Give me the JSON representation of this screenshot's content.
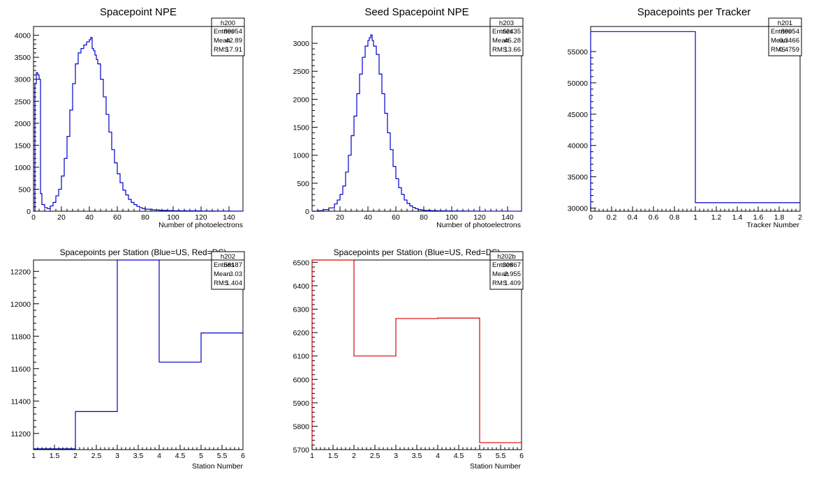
{
  "canvas": {
    "background": "#ffffff"
  },
  "chart_data": [
    {
      "type": "bar",
      "title": "Spacepoint NPE",
      "xlabel": "Number of photoelectrons",
      "ylabel": "",
      "xlim": [
        0,
        150
      ],
      "ylim": [
        0,
        4200
      ],
      "xticks": [
        0,
        20,
        40,
        60,
        80,
        100,
        120,
        140
      ],
      "xticklabels": [
        "0",
        "20",
        "40",
        "60",
        "80",
        "100",
        "120",
        "140"
      ],
      "yticks": [
        0,
        500,
        1000,
        1500,
        2000,
        2500,
        3000,
        3500,
        4000
      ],
      "yticklabels": [
        "0",
        "500",
        "1000",
        "1500",
        "2000",
        "2500",
        "3000",
        "3500",
        "4000"
      ],
      "color": "#0000cc",
      "bin_width": 1,
      "x": [
        0,
        1,
        2,
        3,
        4,
        5,
        6,
        8,
        10,
        12,
        14,
        16,
        18,
        20,
        22,
        24,
        26,
        28,
        30,
        32,
        34,
        36,
        38,
        40,
        41,
        42,
        43,
        44,
        45,
        46,
        48,
        50,
        52,
        54,
        56,
        58,
        60,
        62,
        64,
        66,
        68,
        70,
        72,
        74,
        76,
        78,
        80,
        85,
        90,
        95,
        100,
        110,
        120,
        130,
        140,
        149
      ],
      "values": [
        0,
        2900,
        3150,
        3100,
        3000,
        400,
        150,
        80,
        60,
        120,
        200,
        350,
        500,
        800,
        1200,
        1700,
        2300,
        2900,
        3350,
        3600,
        3700,
        3780,
        3850,
        3900,
        3950,
        3700,
        3650,
        3550,
        3450,
        3350,
        3000,
        2600,
        2200,
        1800,
        1400,
        1100,
        850,
        650,
        480,
        370,
        270,
        200,
        150,
        110,
        80,
        60,
        45,
        30,
        20,
        15,
        10,
        8,
        5,
        3,
        2,
        1
      ],
      "stats": {
        "name": "h200",
        "rows": [
          [
            "Entries",
            "89054"
          ],
          [
            "Mean",
            "42.89"
          ],
          [
            "RMS",
            "17.91"
          ]
        ]
      }
    },
    {
      "type": "bar",
      "title": "Seed Spacepoint NPE",
      "xlabel": "Number of photoelectrons",
      "ylabel": "",
      "xlim": [
        0,
        150
      ],
      "ylim": [
        0,
        3300
      ],
      "xticks": [
        0,
        20,
        40,
        60,
        80,
        100,
        120,
        140
      ],
      "xticklabels": [
        "0",
        "20",
        "40",
        "60",
        "80",
        "100",
        "120",
        "140"
      ],
      "yticks": [
        0,
        500,
        1000,
        1500,
        2000,
        2500,
        3000
      ],
      "yticklabels": [
        "0",
        "500",
        "1000",
        "1500",
        "2000",
        "2500",
        "3000"
      ],
      "color": "#0000cc",
      "bin_width": 1,
      "x": [
        0,
        4,
        8,
        12,
        16,
        18,
        20,
        22,
        24,
        26,
        28,
        30,
        32,
        34,
        36,
        38,
        40,
        41,
        42,
        43,
        44,
        46,
        48,
        50,
        52,
        54,
        56,
        58,
        60,
        62,
        64,
        66,
        68,
        70,
        72,
        74,
        76,
        78,
        80,
        85,
        90,
        95,
        100,
        110,
        120,
        130,
        149
      ],
      "values": [
        0,
        10,
        30,
        60,
        130,
        200,
        300,
        450,
        700,
        1000,
        1350,
        1700,
        2100,
        2450,
        2750,
        2950,
        3050,
        3100,
        3150,
        3050,
        2950,
        2800,
        2450,
        2100,
        1750,
        1400,
        1100,
        800,
        580,
        420,
        300,
        200,
        140,
        95,
        65,
        45,
        30,
        20,
        15,
        10,
        7,
        5,
        3,
        2,
        1,
        1,
        0
      ],
      "stats": {
        "name": "h203",
        "rows": [
          [
            "Entries",
            "62435"
          ],
          [
            "Mean",
            "45.28"
          ],
          [
            "RMS",
            "13.66"
          ]
        ]
      }
    },
    {
      "type": "bar",
      "title": "Spacepoints per Tracker",
      "xlabel": "Tracker Number",
      "ylabel": "",
      "xlim": [
        0,
        2
      ],
      "ylim": [
        29500,
        59000
      ],
      "xticks": [
        0,
        0.2,
        0.4,
        0.6,
        0.8,
        1,
        1.2,
        1.4,
        1.6,
        1.8,
        2
      ],
      "xticklabels": [
        "0",
        "0.2",
        "0.4",
        "0.6",
        "0.8",
        "1",
        "1.2",
        "1.4",
        "1.6",
        "1.8",
        "2"
      ],
      "yticks": [
        30000,
        35000,
        40000,
        45000,
        50000,
        55000
      ],
      "yticklabels": [
        "30000",
        "35000",
        "40000",
        "45000",
        "50000",
        "55000"
      ],
      "color": "#0000cc",
      "bin_width": 1,
      "x": [
        0,
        1
      ],
      "values": [
        58187,
        30867
      ],
      "stats": {
        "name": "h201",
        "rows": [
          [
            "Entries",
            "89054"
          ],
          [
            "Mean",
            "0.3466"
          ],
          [
            "RMS",
            "0.4759"
          ]
        ]
      }
    },
    {
      "type": "bar",
      "title": "Spacepoints per Station (Blue=US, Red=DS)",
      "xlabel": "Station Number",
      "ylabel": "",
      "xlim": [
        1,
        6
      ],
      "ylim": [
        11100,
        12270
      ],
      "xticks": [
        1,
        1.5,
        2,
        2.5,
        3,
        3.5,
        4,
        4.5,
        5,
        5.5,
        6
      ],
      "xticklabels": [
        "1",
        "1.5",
        "2",
        "2.5",
        "3",
        "3.5",
        "4",
        "4.5",
        "5",
        "5.5",
        "6"
      ],
      "yticks": [
        11200,
        11400,
        11600,
        11800,
        12000,
        12200
      ],
      "yticklabels": [
        "11200",
        "11400",
        "11600",
        "11800",
        "12000",
        "12200"
      ],
      "color": "#0000cc",
      "bin_width": 1,
      "x": [
        1,
        2,
        3,
        4,
        5
      ],
      "values": [
        11105,
        11335,
        12270,
        11640,
        11820
      ],
      "stats": {
        "name": "h202",
        "rows": [
          [
            "Entries",
            "58187"
          ],
          [
            "Mean",
            "3.03"
          ],
          [
            "RMS",
            "1.404"
          ]
        ]
      }
    },
    {
      "type": "bar",
      "title": "Spacepoints per Station (Blue=US, Red=DS)",
      "xlabel": "Station Number",
      "ylabel": "",
      "xlim": [
        1,
        6
      ],
      "ylim": [
        5700,
        6510
      ],
      "xticks": [
        1,
        1.5,
        2,
        2.5,
        3,
        3.5,
        4,
        4.5,
        5,
        5.5,
        6
      ],
      "xticklabels": [
        "1",
        "1.5",
        "2",
        "2.5",
        "3",
        "3.5",
        "4",
        "4.5",
        "5",
        "5.5",
        "6"
      ],
      "yticks": [
        5700,
        5800,
        5900,
        6000,
        6100,
        6200,
        6300,
        6400,
        6500
      ],
      "yticklabels": [
        "5700",
        "5800",
        "5900",
        "6000",
        "6100",
        "6200",
        "6300",
        "6400",
        "6500"
      ],
      "color": "#dd0000",
      "bin_width": 1,
      "x": [
        1,
        2,
        3,
        4,
        5
      ],
      "values": [
        6510,
        6100,
        6260,
        6262,
        5730
      ],
      "stats": {
        "name": "h202b",
        "rows": [
          [
            "Entries",
            "30867"
          ],
          [
            "Mean",
            "2.955"
          ],
          [
            "RMS",
            "1.409"
          ]
        ]
      }
    }
  ]
}
